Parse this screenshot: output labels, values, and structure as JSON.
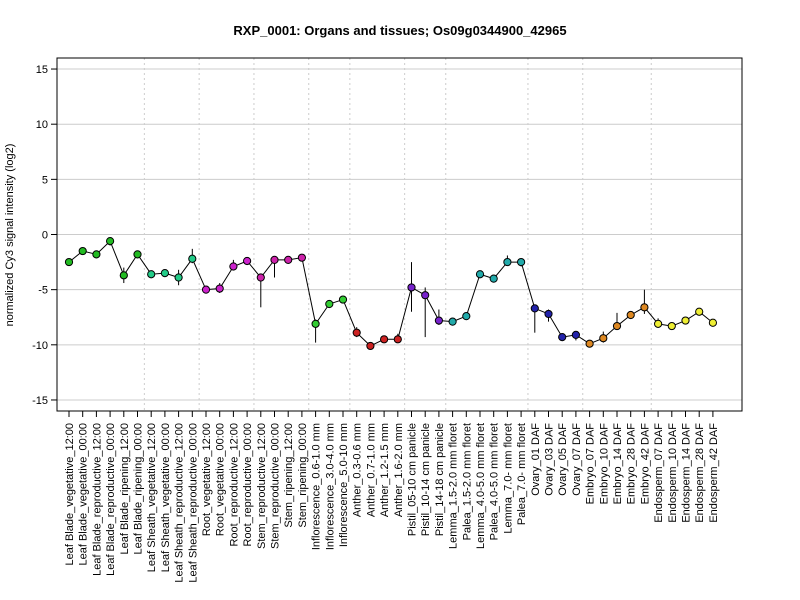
{
  "chart_data": {
    "type": "line",
    "title": "RXP_0001: Organs and tissues; Os09g0344900_42965",
    "xlabel": "",
    "ylabel": "normalized Cy3 signal intensity (log2)",
    "ylim": [
      -16,
      16
    ],
    "yticks": [
      -15,
      -10,
      -5,
      0,
      5,
      10,
      15
    ],
    "grid": true,
    "categories": [
      "Leaf Blade_vegetative_12:00",
      "Leaf Blade_vegetative_00:00",
      "Leaf Blade_reproductive_12:00",
      "Leaf Blade_reproductive_00:00",
      "Leaf Blade_ripening_12:00",
      "Leaf Blade_ripening_00:00",
      "Leaf Sheath_vegetative_12:00",
      "Leaf Sheath_vegetative_00:00",
      "Leaf Sheath_reproductive_12:00",
      "Leaf Sheath_reproductive_00:00",
      "Root_vegetative_12:00",
      "Root_vegetative_00:00",
      "Root_reproductive_12:00",
      "Root_reproductive_00:00",
      "Stem_reproductive_12:00",
      "Stem_reproductive_00:00",
      "Stem_ripening_12:00",
      "Stem_ripening_00:00",
      "Inflorescence_0.6-1.0 mm",
      "Inflorescence_3.0-4.0 mm",
      "Inflorescence_5.0-10 mm",
      "Anther_0.3-0.6 mm",
      "Anther_0.7-1.0 mm",
      "Anther_1.2-1.5 mm",
      "Anther_1.6-2.0 mm",
      "Pistil_05-10 cm panicle",
      "Pistil_10-14 cm panicle",
      "Pistil_14-18 cm panicle",
      "Lemma_1.5-2.0 mm floret",
      "Palea_1.5-2.0 mm floret",
      "Lemma_4.0-5.0 mm floret",
      "Palea_4.0-5.0 mm floret",
      "Lemma_7.0- mm floret",
      "Palea_7.0- mm floret",
      "Ovary_01 DAF",
      "Ovary_03 DAF",
      "Ovary_05 DAF",
      "Ovary_07 DAF",
      "Embryo_07 DAF",
      "Embryo_10 DAF",
      "Embryo_14 DAF",
      "Embryo_28 DAF",
      "Embryo_42 DAF",
      "Endosperm_07 DAF",
      "Endosperm_10 DAF",
      "Endosperm_14 DAF",
      "Endosperm_28 DAF",
      "Endosperm_42 DAF"
    ],
    "values": [
      -2.5,
      -1.5,
      -1.8,
      -0.6,
      -3.7,
      -1.8,
      -3.6,
      -3.5,
      -3.9,
      -2.2,
      -5.0,
      -4.9,
      -2.9,
      -2.4,
      -3.9,
      -2.3,
      -2.3,
      -2.1,
      -8.1,
      -6.3,
      -5.9,
      -8.9,
      -10.1,
      -9.5,
      -9.5,
      -4.8,
      -5.5,
      -7.8,
      -7.9,
      -7.4,
      -3.6,
      -4.0,
      -2.5,
      -2.5,
      -6.7,
      -7.2,
      -9.3,
      -9.1,
      -9.9,
      -9.4,
      -8.3,
      -7.3,
      -6.6,
      -8.1,
      -8.3,
      -7.8,
      -7.0,
      -8.0
    ],
    "error_low": [
      -2.7,
      -1.6,
      -2.0,
      -1.0,
      -4.4,
      -2.0,
      -3.7,
      -3.6,
      -4.6,
      -2.6,
      -5.1,
      -5.3,
      -3.2,
      -2.6,
      -6.6,
      -3.9,
      -2.5,
      -2.2,
      -9.8,
      -6.5,
      -6.2,
      -9.3,
      -10.3,
      -9.7,
      -9.8,
      -7.0,
      -9.3,
      -8.2,
      -8.1,
      -7.6,
      -3.8,
      -4.2,
      -2.8,
      -2.9,
      -8.9,
      -7.9,
      -9.6,
      -9.6,
      -10.0,
      -9.8,
      -8.6,
      -7.6,
      -7.2,
      -8.4,
      -8.5,
      -8.0,
      -7.2,
      -8.2
    ],
    "error_high": [
      -2.3,
      -1.4,
      -1.6,
      -0.3,
      -3.0,
      -1.6,
      -3.5,
      -3.4,
      -3.2,
      -1.3,
      -4.9,
      -4.4,
      -2.3,
      -2.2,
      -3.7,
      -2.1,
      -2.1,
      -2.0,
      -7.7,
      -6.1,
      -5.7,
      -8.4,
      -9.9,
      -9.3,
      -9.0,
      -2.5,
      -4.8,
      -6.8,
      -7.7,
      -7.2,
      -3.4,
      -3.8,
      -1.9,
      -2.2,
      -6.5,
      -6.8,
      -9.0,
      -8.8,
      -9.7,
      -8.8,
      -7.1,
      -7.0,
      -5.0,
      -7.6,
      -8.1,
      -7.6,
      -6.7,
      -7.7
    ],
    "point_colors": [
      "#22bb22",
      "#22bb22",
      "#22bb22",
      "#22bb22",
      "#22bb22",
      "#22bb22",
      "#22cc88",
      "#22cc88",
      "#22cc88",
      "#22cc88",
      "#cc22cc",
      "#cc22cc",
      "#cc22cc",
      "#cc22cc",
      "#cc22aa",
      "#cc22aa",
      "#cc22aa",
      "#cc22aa",
      "#33cc33",
      "#33cc33",
      "#33cc33",
      "#cc2222",
      "#cc2222",
      "#cc2222",
      "#cc2222",
      "#7722cc",
      "#7722cc",
      "#7722cc",
      "#22aaaa",
      "#22aaaa",
      "#22aaaa",
      "#22aaaa",
      "#22aaaa",
      "#22aaaa",
      "#2222aa",
      "#2222aa",
      "#2222aa",
      "#2222aa",
      "#dd8822",
      "#dd8822",
      "#dd8822",
      "#dd8822",
      "#dd8822",
      "#eeee33",
      "#eeee33",
      "#eeee33",
      "#eeee33",
      "#eeee33"
    ],
    "group_boundaries_after": [
      5,
      9,
      13,
      17,
      20,
      24,
      27,
      33,
      37,
      42
    ]
  }
}
